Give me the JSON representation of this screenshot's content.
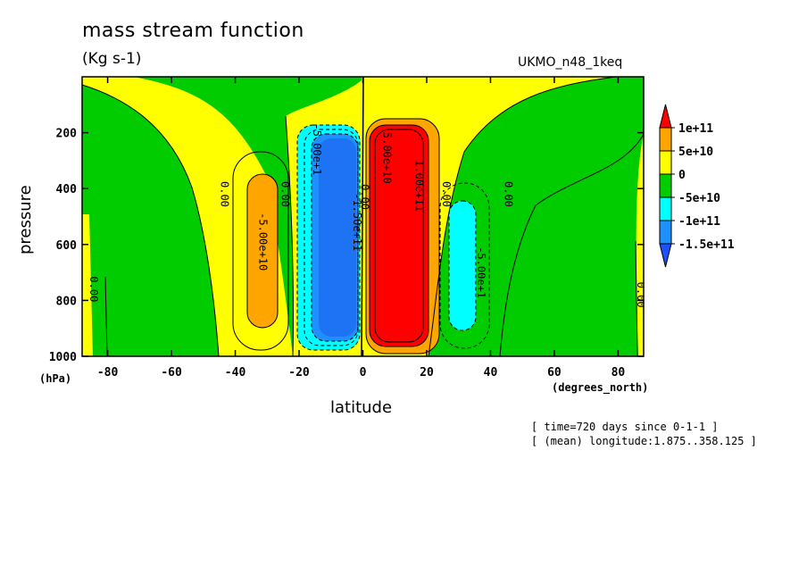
{
  "chart_data": {
    "type": "contour",
    "title": "mass stream function",
    "units": "(Kg s-1)",
    "run_label": "UKMO_n48_1keq",
    "xlabel": "latitude",
    "xunit": "(degrees_north)",
    "ylabel": "pressure",
    "yunit": "(hPa)",
    "xlim": [
      -88,
      88
    ],
    "ylim": [
      1000,
      0
    ],
    "x_ticks": [
      -80,
      -60,
      -40,
      -20,
      0,
      20,
      40,
      60,
      80
    ],
    "y_ticks": [
      200,
      400,
      600,
      800,
      1000
    ],
    "legend": {
      "placement": "right",
      "levels": [
        "1e+11",
        "5e+10",
        "0",
        "-5e+10",
        "-1e+11",
        "-1.5e+11"
      ],
      "colors": [
        "#ff0000",
        "#ffa500",
        "#ffff00",
        "#00cc00",
        "#00ffff",
        "#1e90ff",
        "#1e50ff"
      ]
    },
    "contour_labels": [
      {
        "text": "0.00",
        "lat": -44.5,
        "p": 420
      },
      {
        "text": "-5.00e+10",
        "lat": -32.5,
        "p": 590
      },
      {
        "text": "0.00",
        "lat": -25.5,
        "p": 420
      },
      {
        "text": "-5.00e+1",
        "lat": -15.5,
        "p": 260
      },
      {
        "text": "-1.50e+11",
        "lat": -3,
        "p": 520
      },
      {
        "text": "0.00",
        "lat": -0.5,
        "p": 430
      },
      {
        "text": "5.00e+10",
        "lat": 6.5,
        "p": 290
      },
      {
        "text": "1.00e+11",
        "lat": 16.5,
        "p": 390
      },
      {
        "text": "0.00",
        "lat": 25,
        "p": 420
      },
      {
        "text": "-5.00e+1",
        "lat": 36,
        "p": 700
      },
      {
        "text": "0.00",
        "lat": 44.5,
        "p": 420
      },
      {
        "text": "0.00",
        "lat": -85.5,
        "p": 760
      },
      {
        "text": "0.00",
        "lat": 86,
        "p": 780
      }
    ],
    "meta": [
      "[ time=720 days since 0-1-1 ]",
      "[ (mean) longitude:1.875..358.125 ]"
    ]
  }
}
